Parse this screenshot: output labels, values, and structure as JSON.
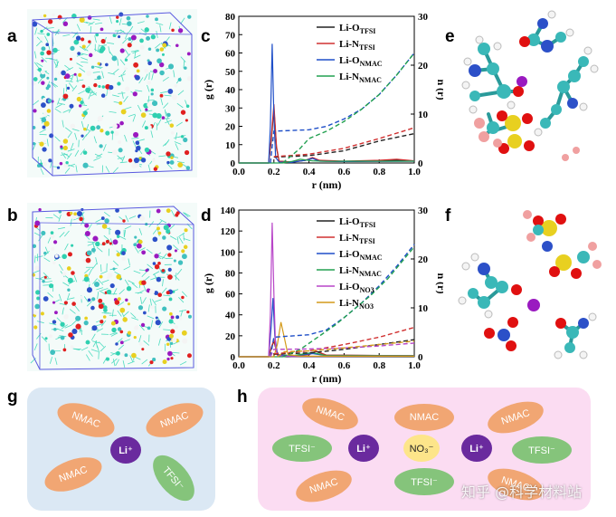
{
  "panels": {
    "a": "a",
    "b": "b",
    "c": "c",
    "d": "d",
    "e": "e",
    "f": "f",
    "g": "g",
    "h": "h"
  },
  "colors": {
    "black": "#222222",
    "red": "#d03030",
    "blue": "#1f4fc8",
    "green": "#22a050",
    "purple": "#b845c8",
    "orange": "#d49a1a",
    "bg_g": "#dbe8f4",
    "bg_h": "#fbdcf2",
    "nmac": "#f1a673",
    "tfsi": "#85c47b",
    "li": "#6a2a9e",
    "no3": "#fde58a"
  },
  "chart_data": [
    {
      "id": "c",
      "type": "line",
      "xlabel": "r (nm)",
      "ylabel_left": "g (r)",
      "ylabel_right": "n (r)",
      "xlim": [
        0.0,
        1.0
      ],
      "ylim_left": [
        0,
        80
      ],
      "ylim_right": [
        0,
        30
      ],
      "xticks": [
        "0.0",
        "0.2",
        "0.4",
        "0.6",
        "0.8",
        "1.0"
      ],
      "yticks_left": [
        "0",
        "10",
        "20",
        "30",
        "40",
        "50",
        "60",
        "70",
        "80"
      ],
      "yticks_right": [
        "0",
        "10",
        "20",
        "30"
      ],
      "legend": [
        {
          "label": "Li-O",
          "sub": "TFSI",
          "color": "black"
        },
        {
          "label": "Li-N",
          "sub": "TFSI",
          "color": "red"
        },
        {
          "label": "Li-O",
          "sub": "NMAC",
          "color": "blue"
        },
        {
          "label": "Li-N",
          "sub": "NMAC",
          "color": "green"
        }
      ],
      "series": [
        {
          "name": "Li-O TFSI g(r)",
          "color": "black",
          "dash": false,
          "x": [
            0.0,
            0.17,
            0.185,
            0.2,
            0.215,
            0.23,
            0.3,
            0.38,
            0.42,
            0.46,
            0.6,
            0.8,
            0.9,
            1.0
          ],
          "y": [
            0,
            0,
            12,
            30,
            8,
            1,
            0.5,
            1.5,
            2.5,
            1.2,
            0.8,
            1.2,
            1.5,
            1.0
          ]
        },
        {
          "name": "Li-N TFSI g(r)",
          "color": "red",
          "dash": false,
          "x": [
            0.0,
            0.17,
            0.185,
            0.2,
            0.215,
            0.23,
            0.3,
            0.38,
            0.42,
            0.46,
            0.6,
            0.8,
            0.9,
            1.0
          ],
          "y": [
            0,
            0,
            14,
            32,
            9,
            1,
            0.5,
            1.5,
            3,
            1.5,
            1.0,
            1.5,
            2.0,
            1.2
          ]
        },
        {
          "name": "Li-O NMAC g(r)",
          "color": "blue",
          "dash": false,
          "x": [
            0.0,
            0.17,
            0.18,
            0.19,
            0.2,
            0.21,
            0.23,
            0.3,
            0.38,
            0.42,
            0.46,
            0.6,
            1.0
          ],
          "y": [
            0,
            0,
            20,
            65,
            25,
            3,
            0.5,
            0.3,
            1.5,
            2.5,
            1.0,
            0.8,
            1.0
          ]
        },
        {
          "name": "Li-N NMAC g(r)",
          "color": "green",
          "dash": false,
          "x": [
            0.0,
            0.25,
            0.3,
            0.35,
            0.42,
            0.5,
            0.6,
            1.0
          ],
          "y": [
            0,
            0,
            0.8,
            2.0,
            1.2,
            0.9,
            1.0,
            1.0
          ]
        },
        {
          "name": "Li-O TFSI n(r)",
          "color": "black",
          "dash": true,
          "axis": "right",
          "x": [
            0.2,
            0.4,
            0.6,
            0.8,
            1.0
          ],
          "y": [
            1.2,
            1.5,
            2.5,
            4.5,
            6.0
          ]
        },
        {
          "name": "Li-N TFSI n(r)",
          "color": "red",
          "dash": true,
          "axis": "right",
          "x": [
            0.2,
            0.4,
            0.6,
            0.8,
            1.0
          ],
          "y": [
            1.3,
            1.8,
            3.0,
            5.0,
            7.2
          ]
        },
        {
          "name": "Li-O NMAC n(r)",
          "color": "blue",
          "dash": true,
          "axis": "right",
          "x": [
            0.18,
            0.2,
            0.4,
            0.5,
            0.6,
            0.7,
            0.8,
            0.9,
            1.0
          ],
          "y": [
            0,
            6.5,
            6.8,
            7.5,
            9.0,
            11.0,
            14.0,
            18.0,
            22.5
          ]
        },
        {
          "name": "Li-N NMAC n(r)",
          "color": "green",
          "dash": true,
          "axis": "right",
          "x": [
            0.25,
            0.35,
            0.4,
            0.5,
            0.6,
            0.7,
            0.8,
            0.9,
            1.0
          ],
          "y": [
            0,
            3.0,
            5.0,
            6.5,
            8.5,
            11.0,
            14.0,
            18.0,
            22.5
          ]
        }
      ]
    },
    {
      "id": "d",
      "type": "line",
      "xlabel": "r (nm)",
      "ylabel_left": "g (r)",
      "ylabel_right": "n (r)",
      "xlim": [
        0.0,
        1.0
      ],
      "ylim_left": [
        0,
        140
      ],
      "ylim_right": [
        0,
        30
      ],
      "xticks": [
        "0.0",
        "0.2",
        "0.4",
        "0.6",
        "0.8",
        "1.0"
      ],
      "yticks_left": [
        "0",
        "20",
        "40",
        "60",
        "80",
        "100",
        "120",
        "140"
      ],
      "yticks_right": [
        "0",
        "10",
        "20",
        "30"
      ],
      "legend": [
        {
          "label": "Li-O",
          "sub": "TFSI",
          "color": "black"
        },
        {
          "label": "Li-N",
          "sub": "TFSI",
          "color": "red"
        },
        {
          "label": "Li-O",
          "sub": "NMAC",
          "color": "blue"
        },
        {
          "label": "Li-N",
          "sub": "NMAC",
          "color": "green"
        },
        {
          "label": "Li-O",
          "sub": "NO3",
          "color": "purple"
        },
        {
          "label": "Li-N",
          "sub": "NO3",
          "color": "orange"
        }
      ],
      "series": [
        {
          "name": "Li-O TFSI g(r)",
          "color": "black",
          "dash": false,
          "x": [
            0.0,
            0.17,
            0.185,
            0.2,
            0.215,
            0.23,
            0.3,
            0.4,
            0.44,
            0.5,
            1.0
          ],
          "y": [
            0,
            0,
            8,
            15,
            5,
            1,
            0.5,
            2,
            5,
            1.5,
            1.0
          ]
        },
        {
          "name": "Li-N TFSI g(r)",
          "color": "red",
          "dash": false,
          "x": [
            0.0,
            0.17,
            0.185,
            0.2,
            0.215,
            0.23,
            0.3,
            0.4,
            0.44,
            0.5,
            1.0
          ],
          "y": [
            0,
            0,
            9,
            16,
            6,
            1,
            0.5,
            2,
            5.5,
            1.5,
            1.0
          ]
        },
        {
          "name": "Li-O NMAC g(r)",
          "color": "blue",
          "dash": false,
          "x": [
            0.0,
            0.17,
            0.185,
            0.195,
            0.205,
            0.22,
            0.3,
            0.42,
            0.5,
            1.0
          ],
          "y": [
            0,
            0,
            30,
            56,
            20,
            2,
            0.5,
            3,
            1.0,
            1.0
          ]
        },
        {
          "name": "Li-N NMAC g(r)",
          "color": "green",
          "dash": false,
          "x": [
            0.0,
            0.25,
            0.32,
            0.42,
            0.5,
            1.0
          ],
          "y": [
            0,
            0,
            1.5,
            4,
            1.0,
            1.0
          ]
        },
        {
          "name": "Li-O NO3 g(r)",
          "color": "purple",
          "dash": false,
          "x": [
            0.0,
            0.17,
            0.18,
            0.19,
            0.2,
            0.21,
            0.22,
            0.3,
            1.0
          ],
          "y": [
            0,
            0,
            40,
            128,
            60,
            8,
            1,
            0.3,
            0.5
          ]
        },
        {
          "name": "Li-N NO3 g(r)",
          "color": "orange",
          "dash": false,
          "x": [
            0.0,
            0.2,
            0.22,
            0.24,
            0.26,
            0.28,
            0.35,
            1.0
          ],
          "y": [
            0,
            0,
            12,
            33,
            18,
            2,
            0.5,
            0.5
          ]
        },
        {
          "name": "Li-O TFSI n(r)",
          "color": "black",
          "dash": true,
          "axis": "right",
          "x": [
            0.2,
            0.4,
            0.6,
            0.8,
            1.0
          ],
          "y": [
            0.5,
            0.8,
            1.5,
            2.5,
            3.5
          ]
        },
        {
          "name": "Li-N TFSI n(r)",
          "color": "red",
          "dash": true,
          "axis": "right",
          "x": [
            0.2,
            0.4,
            0.6,
            0.8,
            1.0
          ],
          "y": [
            0.6,
            1.2,
            2.5,
            4.0,
            6.0
          ]
        },
        {
          "name": "Li-O NMAC n(r)",
          "color": "blue",
          "dash": true,
          "axis": "right",
          "x": [
            0.18,
            0.2,
            0.4,
            0.5,
            0.6,
            0.7,
            0.8,
            0.9,
            1.0
          ],
          "y": [
            0,
            4.0,
            4.5,
            5.5,
            8.0,
            11.0,
            14.5,
            18.5,
            23.0
          ]
        },
        {
          "name": "Li-N NMAC n(r)",
          "color": "green",
          "dash": true,
          "axis": "right",
          "x": [
            0.25,
            0.35,
            0.45,
            0.55,
            0.65,
            0.75,
            0.85,
            1.0
          ],
          "y": [
            0,
            1.5,
            4.0,
            6.5,
            9.5,
            12.5,
            16.0,
            22.5
          ]
        },
        {
          "name": "Li-O NO3 n(r)",
          "color": "purple",
          "dash": true,
          "axis": "right",
          "x": [
            0.18,
            0.2,
            0.4,
            0.6,
            0.8,
            1.0
          ],
          "y": [
            0,
            1.5,
            1.6,
            1.8,
            2.2,
            2.8
          ]
        },
        {
          "name": "Li-N NO3 n(r)",
          "color": "orange",
          "dash": true,
          "axis": "right",
          "x": [
            0.22,
            0.26,
            0.4,
            0.6,
            0.8,
            1.0
          ],
          "y": [
            0,
            1.0,
            1.2,
            1.8,
            2.5,
            3.2
          ]
        }
      ]
    }
  ],
  "schematic_g": {
    "ellipses": [
      "NMAC",
      "NMAC",
      "NMAC",
      "TFSI⁻"
    ],
    "center": "Li⁺"
  },
  "schematic_h": {
    "ellipses": [
      "NMAC",
      "NMAC",
      "NMAC",
      "NMAC",
      "NMAC",
      "TFSI⁻",
      "TFSI⁻",
      "TFSI⁻"
    ],
    "li": [
      "Li⁺",
      "Li⁺"
    ],
    "no3": "NO₃⁻"
  },
  "watermark": "知乎 @科学材料站"
}
